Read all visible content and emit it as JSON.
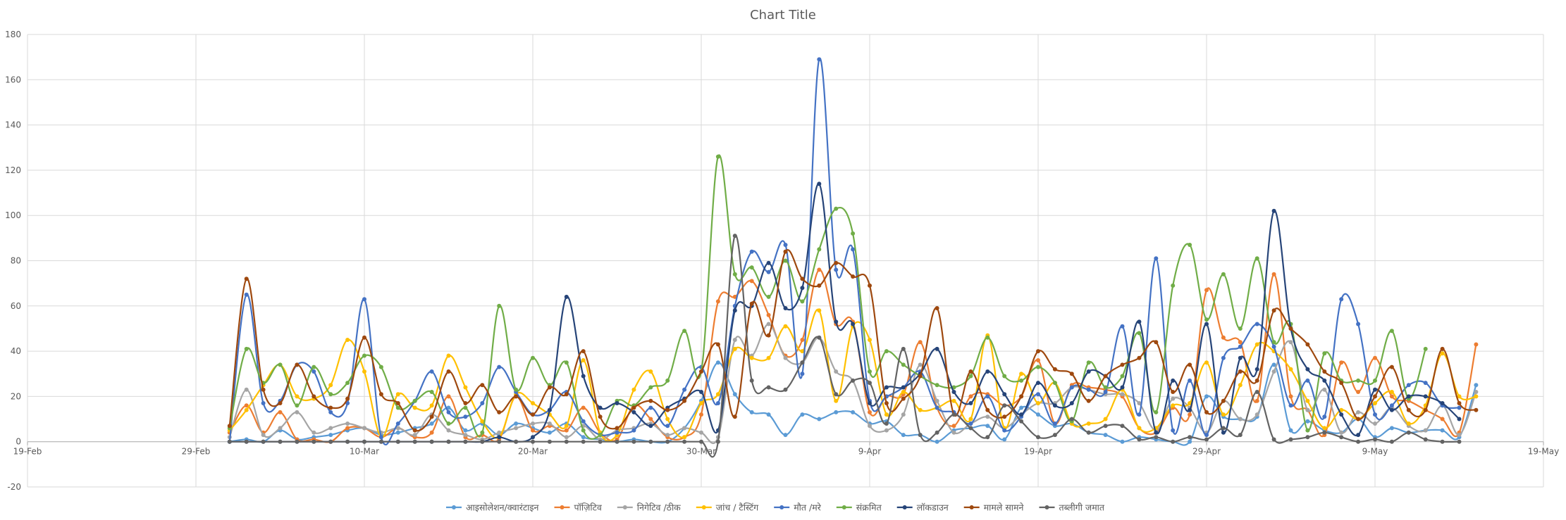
{
  "chart_data": {
    "type": "line",
    "smooth": true,
    "markers": true,
    "title": "Chart Title",
    "xlabel": "",
    "ylabel": "",
    "x_start": "2020-03-02",
    "x_ticks": [
      "19-Feb",
      "29-Feb",
      "10-Mar",
      "20-Mar",
      "30-Mar",
      "9-Apr",
      "19-Apr",
      "29-Apr",
      "9-May",
      "19-May"
    ],
    "y_ticks": [
      -20,
      0,
      20,
      40,
      60,
      80,
      100,
      120,
      140,
      160,
      180
    ],
    "ylim": [
      -20,
      180
    ],
    "xlim": [
      "2020-02-19",
      "2020-05-19"
    ],
    "grid": true,
    "legend_position": "bottom",
    "series": [
      {
        "name": "आइसोलेशन/क्वारंटाइन",
        "color": "#5B9BD5",
        "values": [
          0,
          1,
          0,
          5,
          1,
          2,
          3,
          5,
          6,
          3,
          4,
          6,
          8,
          15,
          5,
          8,
          3,
          8,
          6,
          4,
          8,
          2,
          1,
          0,
          1,
          0,
          0,
          6,
          18,
          35,
          21,
          13,
          12,
          3,
          12,
          10,
          13,
          13,
          8,
          9,
          3,
          3,
          0,
          5,
          6,
          7,
          1,
          15,
          12,
          7,
          8,
          4,
          3,
          0,
          2,
          1,
          0,
          0,
          20,
          11,
          10,
          11,
          34,
          5,
          9,
          5,
          4,
          10,
          2,
          6,
          4,
          5,
          5,
          2,
          25
        ]
      },
      {
        "name": "पॉज़िटिव",
        "color": "#ED7D31",
        "values": [
          4,
          16,
          4,
          13,
          1,
          1,
          0,
          6,
          6,
          2,
          6,
          2,
          4,
          20,
          2,
          3,
          1,
          20,
          5,
          7,
          5,
          15,
          4,
          1,
          16,
          10,
          2,
          2,
          12,
          62,
          64,
          71,
          56,
          38,
          45,
          76,
          52,
          53,
          13,
          20,
          21,
          44,
          15,
          7,
          20,
          21,
          16,
          20,
          36,
          8,
          25,
          24,
          23,
          20,
          6,
          4,
          15,
          12,
          67,
          46,
          44,
          18,
          74,
          20,
          14,
          3,
          35,
          22,
          37,
          20,
          18,
          14,
          10,
          4,
          43
        ]
      },
      {
        "name": "निगेटिव /ठीक",
        "color": "#A5A5A5",
        "values": [
          2,
          23,
          3,
          6,
          13,
          4,
          6,
          8,
          6,
          4,
          6,
          3,
          12,
          5,
          3,
          1,
          4,
          6,
          8,
          8,
          2,
          7,
          1,
          5,
          6,
          8,
          3,
          6,
          4,
          2,
          45,
          38,
          52,
          37,
          35,
          46,
          31,
          27,
          7,
          5,
          12,
          34,
          18,
          4,
          8,
          11,
          6,
          12,
          17,
          17,
          24,
          23,
          21,
          21,
          17,
          5,
          19,
          15,
          4,
          18,
          10,
          12,
          31,
          44,
          14,
          23,
          4,
          13,
          8,
          15,
          7,
          5,
          16,
          3,
          22
        ]
      },
      {
        "name": "जांच / टैस्टिंग",
        "color": "#FFC000",
        "values": [
          5,
          14,
          25,
          34,
          20,
          19,
          25,
          45,
          31,
          2,
          21,
          15,
          16,
          38,
          24,
          9,
          2,
          21,
          17,
          12,
          7,
          36,
          4,
          3,
          23,
          31,
          10,
          2,
          17,
          21,
          41,
          37,
          37,
          51,
          40,
          58,
          18,
          51,
          45,
          12,
          22,
          14,
          15,
          18,
          10,
          47,
          6,
          30,
          17,
          26,
          8,
          8,
          10,
          23,
          6,
          6,
          16,
          17,
          35,
          12,
          25,
          43,
          40,
          32,
          18,
          6,
          14,
          10,
          17,
          22,
          8,
          16,
          39,
          20,
          20
        ]
      },
      {
        "name": "मौत /मरे",
        "color": "#4472C4",
        "values": [
          0,
          65,
          17,
          18,
          34,
          31,
          13,
          17,
          63,
          2,
          8,
          18,
          31,
          13,
          11,
          17,
          33,
          22,
          12,
          14,
          22,
          9,
          3,
          4,
          5,
          15,
          7,
          23,
          33,
          17,
          60,
          84,
          75,
          87,
          30,
          169,
          76,
          85,
          18,
          20,
          24,
          31,
          15,
          13,
          8,
          20,
          5,
          11,
          21,
          8,
          24,
          23,
          22,
          51,
          12,
          81,
          5,
          27,
          3,
          37,
          42,
          52,
          42,
          16,
          27,
          11,
          63,
          52,
          12,
          16,
          25,
          26,
          16,
          15
        ]
      },
      {
        "name": "संक्रमित",
        "color": "#70AD47",
        "values": [
          6,
          41,
          26,
          34,
          16,
          33,
          21,
          26,
          38,
          33,
          15,
          18,
          22,
          8,
          15,
          4,
          60,
          23,
          37,
          25,
          35,
          5,
          3,
          18,
          16,
          24,
          27,
          49,
          31,
          126,
          74,
          77,
          64,
          80,
          62,
          85,
          103,
          92,
          31,
          40,
          34,
          29,
          25,
          24,
          29,
          46,
          29,
          27,
          33,
          26,
          9,
          35,
          24,
          29,
          48,
          13,
          69,
          87,
          54,
          74,
          50,
          81,
          44,
          52,
          5,
          39,
          27,
          27,
          27,
          49,
          19,
          41
        ]
      },
      {
        "name": "लॉकडाउन",
        "color": "#264478",
        "values": [
          0,
          0,
          0,
          0,
          0,
          0,
          0,
          0,
          0,
          0,
          0,
          0,
          0,
          0,
          0,
          0,
          2,
          0,
          2,
          14,
          64,
          29,
          15,
          17,
          13,
          7,
          15,
          19,
          22,
          5,
          58,
          60,
          79,
          59,
          68,
          114,
          53,
          52,
          17,
          24,
          24,
          30,
          41,
          22,
          17,
          31,
          21,
          12,
          26,
          16,
          17,
          31,
          29,
          24,
          53,
          4,
          27,
          14,
          52,
          4,
          37,
          32,
          102,
          50,
          32,
          27,
          12,
          3,
          23,
          14,
          20,
          20,
          17,
          10
        ]
      },
      {
        "name": "मामले सामने",
        "color": "#9E480E",
        "values": [
          7,
          72,
          23,
          17,
          34,
          20,
          15,
          19,
          46,
          21,
          17,
          5,
          11,
          31,
          17,
          25,
          13,
          20,
          12,
          24,
          21,
          40,
          11,
          6,
          15,
          18,
          14,
          18,
          31,
          43,
          11,
          61,
          47,
          84,
          72,
          69,
          79,
          73,
          69,
          17,
          19,
          29,
          59,
          12,
          31,
          14,
          11,
          20,
          40,
          32,
          30,
          18,
          29,
          34,
          37,
          44,
          22,
          34,
          13,
          18,
          31,
          27,
          58,
          50,
          43,
          31,
          26,
          10,
          20,
          33,
          14,
          14,
          41,
          17,
          14
        ]
      },
      {
        "name": "तब्लीगी जमात",
        "color": "#636363",
        "values": [
          0,
          0,
          0,
          0,
          0,
          0,
          0,
          0,
          0,
          0,
          0,
          0,
          0,
          0,
          0,
          0,
          0,
          0,
          0,
          0,
          0,
          0,
          0,
          0,
          0,
          0,
          0,
          0,
          0,
          0,
          91,
          27,
          24,
          23,
          35,
          46,
          21,
          27,
          26,
          8,
          41,
          3,
          4,
          12,
          6,
          2,
          16,
          9,
          2,
          3,
          10,
          4,
          7,
          7,
          1,
          2,
          0,
          2,
          1,
          6,
          3,
          22,
          1,
          1,
          2,
          4,
          2,
          0,
          1,
          0,
          4,
          1,
          0,
          0
        ]
      }
    ]
  }
}
